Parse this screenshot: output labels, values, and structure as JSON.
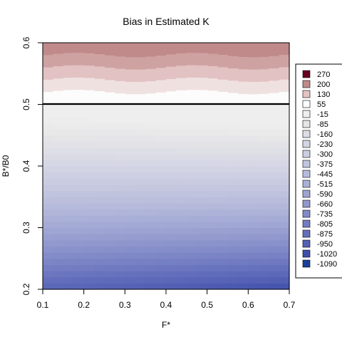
{
  "chart_data": {
    "type": "heatmap",
    "title": "Bias in Estimated K",
    "xlabel": "F*",
    "ylabel": "B*/B0",
    "xlim": [
      0.1,
      0.7
    ],
    "ylim": [
      0.2,
      0.6
    ],
    "x_ticks": [
      "0.1",
      "0.2",
      "0.3",
      "0.4",
      "0.5",
      "0.6",
      "0.7"
    ],
    "y_ticks": [
      "0.2",
      "0.3",
      "0.4",
      "0.5",
      "0.6"
    ],
    "reference_line_y": 0.5,
    "legend_position": "right",
    "legend": [
      {
        "label": "270",
        "color": "#67001f"
      },
      {
        "label": "200",
        "color": "#c08a8a"
      },
      {
        "label": "130",
        "color": "#e2c2c2"
      },
      {
        "label": "55",
        "color": "#fcfcfc"
      },
      {
        "label": "-15",
        "color": "#eeeeee"
      },
      {
        "label": "-85",
        "color": "#e6e6e8"
      },
      {
        "label": "-160",
        "color": "#dddde6"
      },
      {
        "label": "-230",
        "color": "#d4d5e4"
      },
      {
        "label": "-300",
        "color": "#cbcde1"
      },
      {
        "label": "-375",
        "color": "#c1c4de"
      },
      {
        "label": "-445",
        "color": "#b7bbdb"
      },
      {
        "label": "-515",
        "color": "#aab0d7"
      },
      {
        "label": "-590",
        "color": "#9ea5d3"
      },
      {
        "label": "-660",
        "color": "#9098cd"
      },
      {
        "label": "-735",
        "color": "#828bc8"
      },
      {
        "label": "-805",
        "color": "#737dc2"
      },
      {
        "label": "-875",
        "color": "#636fbc"
      },
      {
        "label": "-950",
        "color": "#5460b4"
      },
      {
        "label": "-1020",
        "color": "#3e4fab"
      },
      {
        "label": "-1090",
        "color": "#1a3f9a"
      }
    ],
    "top_band_bias": [
      {
        "y_from": 0.58,
        "y_to": 0.6,
        "value": 200
      },
      {
        "y_from": 0.56,
        "y_to": 0.58,
        "value": 170
      },
      {
        "y_from": 0.54,
        "y_to": 0.56,
        "value": 130
      },
      {
        "y_from": 0.52,
        "y_to": 0.54,
        "value": 90
      },
      {
        "y_from": 0.5,
        "y_to": 0.52,
        "value": 55
      }
    ],
    "lower_region_bias": {
      "y_at_0.48": -15,
      "y_at_0.20": -1020
    }
  }
}
